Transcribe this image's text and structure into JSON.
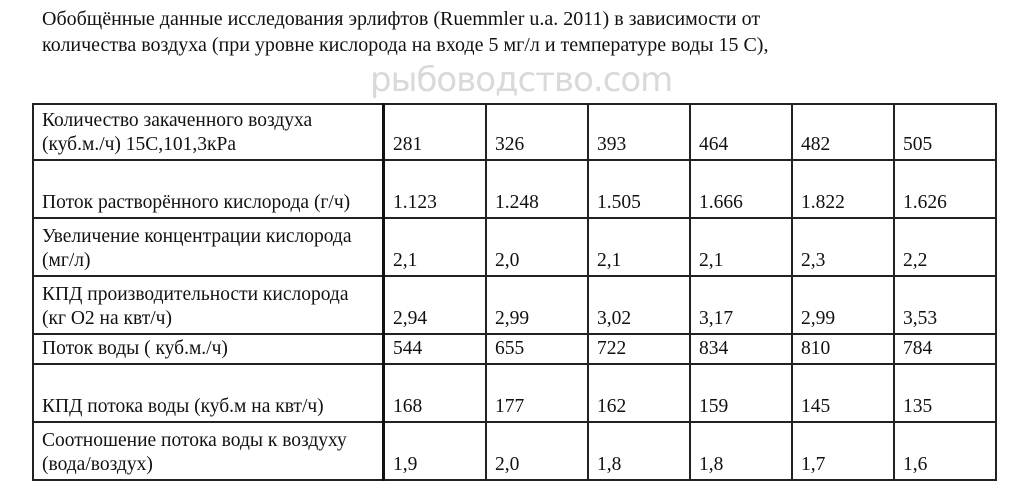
{
  "caption": {
    "line1": "Обобщённые данные исследования эрлифтов (Ruemmler  u.a. 2011) в зависимости от",
    "line2": "количества воздуха  (при уровне кислорода на входе 5 мг/л и температуре воды 15 С),"
  },
  "watermark": "рыбоводство.com",
  "table": {
    "rows": [
      {
        "label": "Количество закаченного воздуха  (куб.м./ч)  15С,101,3кРа",
        "values": [
          "281",
          "326",
          "393",
          "464",
          "482",
          "505"
        ]
      },
      {
        "label": "Поток растворённого кислорода (г/ч)",
        "values": [
          "1.123",
          "1.248",
          "1.505",
          "1.666",
          "1.822",
          "1.626"
        ]
      },
      {
        "label": "Увеличение концентрации кислорода (мг/л)",
        "values": [
          "2,1",
          "2,0",
          "2,1",
          "2,1",
          "2,3",
          "2,2"
        ]
      },
      {
        "label": "КПД производительности кислорода (кг  O2 на квт/ч)",
        "values": [
          "2,94",
          "2,99",
          "3,02",
          "3,17",
          "2,99",
          "3,53"
        ]
      },
      {
        "label": "Поток воды ( куб.м./ч)",
        "values": [
          "544",
          "655",
          "722",
          "834",
          "810",
          "784"
        ]
      },
      {
        "label": "КПД потока воды (куб.м  на квт/ч)",
        "values": [
          "168",
          "177",
          "162",
          "159",
          "145",
          "135"
        ]
      },
      {
        "label": "Соотношение потока воды к воздуху  (вода/воздух)",
        "values": [
          "1,9",
          "2,0",
          "1,8",
          "1,8",
          "1,7",
          "1,6"
        ]
      }
    ]
  }
}
